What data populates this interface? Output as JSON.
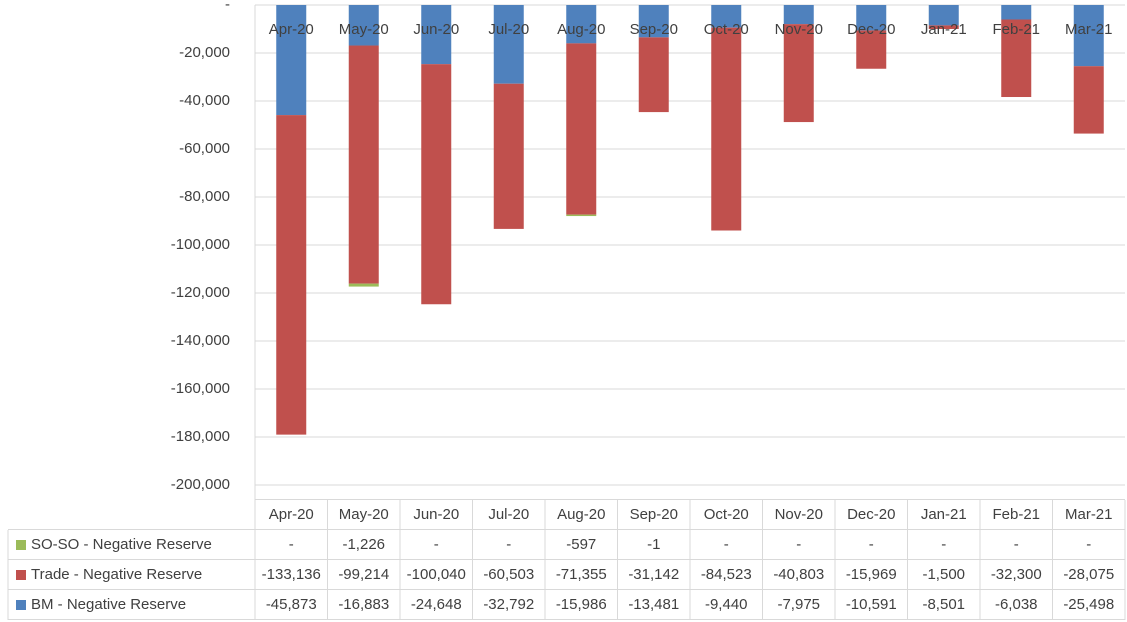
{
  "chart_data": {
    "type": "stacked-bar",
    "categories": [
      "Apr-20",
      "May-20",
      "Jun-20",
      "Jul-20",
      "Aug-20",
      "Sep-20",
      "Oct-20",
      "Nov-20",
      "Dec-20",
      "Jan-21",
      "Feb-21",
      "Mar-21"
    ],
    "series": [
      {
        "name": "SO-SO - Negative Reserve",
        "color": "#9bbb59",
        "values": [
          0,
          -1226,
          0,
          0,
          -597,
          -1,
          0,
          0,
          0,
          0,
          0,
          0
        ],
        "value_labels": [
          "-",
          "-1,226",
          "-",
          "-",
          "-597",
          "-1",
          "-",
          "-",
          "-",
          "-",
          "-",
          "-"
        ]
      },
      {
        "name": "Trade - Negative Reserve",
        "color": "#c0504d",
        "values": [
          -133136,
          -99214,
          -100040,
          -60503,
          -71355,
          -31142,
          -84523,
          -40803,
          -15969,
          -1500,
          -32300,
          -28075
        ],
        "value_labels": [
          "-133,136",
          "-99,214",
          "-100,040",
          "-60,503",
          "-71,355",
          "-31,142",
          "-84,523",
          "-40,803",
          "-15,969",
          "-1,500",
          "-32,300",
          "-28,075"
        ]
      },
      {
        "name": "BM - Negative Reserve",
        "color": "#4f81bd",
        "values": [
          -45873,
          -16883,
          -24648,
          -32792,
          -15986,
          -13481,
          -9440,
          -7975,
          -10591,
          -8501,
          -6038,
          -25498
        ],
        "value_labels": [
          "-45,873",
          "-16,883",
          "-24,648",
          "-32,792",
          "-15,986",
          "-13,481",
          "-9,440",
          "-7,975",
          "-10,591",
          "-8,501",
          "-6,038",
          "-25,498"
        ]
      }
    ],
    "ylim": [
      -200000,
      0
    ],
    "yticks": [
      {
        "value": 0,
        "label": "-"
      },
      {
        "value": -20000,
        "label": "-20,000"
      },
      {
        "value": -40000,
        "label": "-40,000"
      },
      {
        "value": -60000,
        "label": "-60,000"
      },
      {
        "value": -80000,
        "label": "-80,000"
      },
      {
        "value": -100000,
        "label": "-100,000"
      },
      {
        "value": -120000,
        "label": "-120,000"
      },
      {
        "value": -140000,
        "label": "-140,000"
      },
      {
        "value": -160000,
        "label": "-160,000"
      },
      {
        "value": -180000,
        "label": "-180,000"
      },
      {
        "value": -200000,
        "label": "-200,000"
      }
    ],
    "grid": true
  }
}
